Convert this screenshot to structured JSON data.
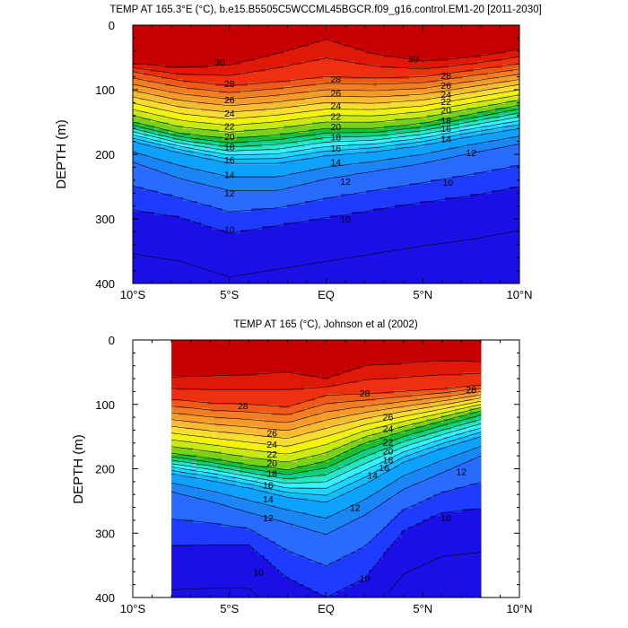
{
  "colors": {
    "levels": [
      "#1a10e6",
      "#1e3cff",
      "#2a6bff",
      "#1a86f5",
      "#0ea2ff",
      "#14bcff",
      "#1ad8ff",
      "#3aefff",
      "#24e8c4",
      "#10d080",
      "#18c030",
      "#7ad218",
      "#c8ea10",
      "#f2f20e",
      "#f8dc30",
      "#f7bb32",
      "#f59b2a",
      "#f27d22",
      "#ef5a18",
      "#ec3010",
      "#e01808",
      "#c60000"
    ]
  },
  "chart_data": [
    {
      "type": "contour",
      "title": "TEMP AT 165.3°E (°C), b.e15.B5505C5WCCML45BGCR.f09_g16.control.EM1-20 [2011-2030]",
      "xlabel": "",
      "ylabel": "DEPTH (m)",
      "xlim": [
        -10,
        10
      ],
      "ylim": [
        400,
        0
      ],
      "xticks": [
        {
          "value": -10,
          "label": "10°S"
        },
        {
          "value": -5,
          "label": "5°S"
        },
        {
          "value": 0,
          "label": "EQ"
        },
        {
          "value": 5,
          "label": "5°N"
        },
        {
          "value": 10,
          "label": "10°N"
        }
      ],
      "yticks": [
        0,
        100,
        200,
        300,
        400
      ],
      "data_xrange": [
        -10,
        10
      ],
      "contour_levels": [
        9,
        10,
        11,
        12,
        13,
        14,
        15,
        16,
        17,
        18,
        19,
        20,
        21,
        22,
        23,
        24,
        25,
        26,
        27,
        28,
        29,
        30
      ],
      "approx_isotherm_depths": {
        "x": [
          -10,
          -7.5,
          -5,
          -2.5,
          0,
          2.5,
          5,
          7.5,
          10
        ],
        "t30": [
          60,
          66,
          62,
          44,
          22,
          45,
          56,
          50,
          38
        ],
        "t28": [
          72,
          86,
          94,
          88,
          80,
          82,
          80,
          70,
          60
        ],
        "t20": [
          150,
          168,
          176,
          170,
          160,
          160,
          152,
          138,
          124
        ],
        "t14": [
          180,
          198,
          214,
          214,
          202,
          196,
          186,
          172,
          160
        ],
        "t12": [
          212,
          238,
          256,
          256,
          238,
          226,
          214,
          198,
          184
        ],
        "t10": [
          286,
          298,
          322,
          310,
          298,
          286,
          274,
          264,
          250
        ]
      },
      "contour_labels": [
        {
          "text": "30",
          "x": -5.5,
          "y": 57
        },
        {
          "text": "30",
          "x": 4.5,
          "y": 52
        },
        {
          "text": "28",
          "x": -5.0,
          "y": 90
        },
        {
          "text": "28",
          "x": 0.5,
          "y": 83
        },
        {
          "text": "28",
          "x": 6.2,
          "y": 78
        },
        {
          "text": "26",
          "x": -5.0,
          "y": 115
        },
        {
          "text": "26",
          "x": 0.5,
          "y": 105
        },
        {
          "text": "26",
          "x": 6.2,
          "y": 93
        },
        {
          "text": "24",
          "x": 6.2,
          "y": 107
        },
        {
          "text": "22",
          "x": 6.2,
          "y": 118
        },
        {
          "text": "24",
          "x": -5.0,
          "y": 136
        },
        {
          "text": "24",
          "x": 0.5,
          "y": 124
        },
        {
          "text": "22",
          "x": -5.0,
          "y": 156
        },
        {
          "text": "22",
          "x": 0.5,
          "y": 141
        },
        {
          "text": "20",
          "x": 6.2,
          "y": 131
        },
        {
          "text": "18",
          "x": 6.2,
          "y": 147
        },
        {
          "text": "20",
          "x": -5.0,
          "y": 172
        },
        {
          "text": "20",
          "x": 0.5,
          "y": 157
        },
        {
          "text": "18",
          "x": -5.0,
          "y": 188
        },
        {
          "text": "18",
          "x": 0.5,
          "y": 173
        },
        {
          "text": "16",
          "x": 6.2,
          "y": 160
        },
        {
          "text": "14",
          "x": 6.2,
          "y": 176
        },
        {
          "text": "16",
          "x": -5.0,
          "y": 208
        },
        {
          "text": "16",
          "x": 0.5,
          "y": 190
        },
        {
          "text": "12",
          "x": 7.5,
          "y": 197
        },
        {
          "text": "14",
          "x": -5.0,
          "y": 231
        },
        {
          "text": "14",
          "x": 0.5,
          "y": 212
        },
        {
          "text": "10",
          "x": 6.3,
          "y": 243
        },
        {
          "text": "12",
          "x": -5.0,
          "y": 260
        },
        {
          "text": "12",
          "x": 1.0,
          "y": 242
        },
        {
          "text": "10",
          "x": -5.0,
          "y": 316
        },
        {
          "text": "10",
          "x": 1.0,
          "y": 300
        }
      ]
    },
    {
      "type": "contour",
      "title": "TEMP AT 165 (°C), Johnson et al (2002)",
      "xlabel": "",
      "ylabel": "DEPTH (m)",
      "xlim": [
        -10,
        10
      ],
      "ylim": [
        400,
        0
      ],
      "xticks": [
        {
          "value": -10,
          "label": "10°S"
        },
        {
          "value": -5,
          "label": "5°S"
        },
        {
          "value": 0,
          "label": "EQ"
        },
        {
          "value": 5,
          "label": "5°N"
        },
        {
          "value": 10,
          "label": "10°N"
        }
      ],
      "yticks": [
        0,
        100,
        200,
        300,
        400
      ],
      "data_xrange": [
        -8,
        8
      ],
      "contour_levels": [
        9,
        10,
        11,
        12,
        13,
        14,
        15,
        16,
        17,
        18,
        19,
        20,
        21,
        22,
        23,
        24,
        25,
        26,
        27,
        28,
        29,
        30
      ],
      "approx_isotherm_depths": {
        "x": [
          -8,
          -6,
          -4,
          -2,
          0,
          2,
          4,
          6,
          8
        ],
        "t30": [
          58,
          56,
          54,
          50,
          60,
          40,
          36,
          32,
          34
        ],
        "t28": [
          92,
          98,
          100,
          104,
          86,
          84,
          80,
          76,
          70
        ],
        "t20": [
          176,
          184,
          194,
          202,
          188,
          160,
          142,
          126,
          110
        ],
        "t14": [
          208,
          218,
          230,
          244,
          252,
          224,
          190,
          168,
          150
        ],
        "t12": [
          236,
          250,
          268,
          284,
          302,
          272,
          232,
          206,
          180
        ],
        "t10": [
          320,
          318,
          318,
          370,
          400,
          370,
          296,
          268,
          262
        ]
      },
      "contour_labels": [
        {
          "text": "28",
          "x": -4.3,
          "y": 102
        },
        {
          "text": "28",
          "x": 2.0,
          "y": 82
        },
        {
          "text": "28",
          "x": 7.5,
          "y": 77
        },
        {
          "text": "26",
          "x": -2.8,
          "y": 144
        },
        {
          "text": "26",
          "x": 3.2,
          "y": 119
        },
        {
          "text": "24",
          "x": -2.8,
          "y": 162
        },
        {
          "text": "24",
          "x": 3.2,
          "y": 137
        },
        {
          "text": "22",
          "x": -2.8,
          "y": 177
        },
        {
          "text": "22",
          "x": 3.2,
          "y": 158
        },
        {
          "text": "20",
          "x": -2.8,
          "y": 191
        },
        {
          "text": "20",
          "x": 3.2,
          "y": 172
        },
        {
          "text": "18",
          "x": -2.8,
          "y": 207
        },
        {
          "text": "18",
          "x": 3.2,
          "y": 186
        },
        {
          "text": "16",
          "x": -3.0,
          "y": 225
        },
        {
          "text": "16",
          "x": 3.0,
          "y": 198
        },
        {
          "text": "14",
          "x": -3.0,
          "y": 247
        },
        {
          "text": "14",
          "x": 2.4,
          "y": 210
        },
        {
          "text": "12",
          "x": 7.0,
          "y": 204
        },
        {
          "text": "12",
          "x": -3.0,
          "y": 276
        },
        {
          "text": "12",
          "x": 1.5,
          "y": 260
        },
        {
          "text": "10",
          "x": 6.2,
          "y": 276
        },
        {
          "text": "10",
          "x": -3.5,
          "y": 360
        },
        {
          "text": "10",
          "x": 2.0,
          "y": 370
        }
      ]
    }
  ]
}
